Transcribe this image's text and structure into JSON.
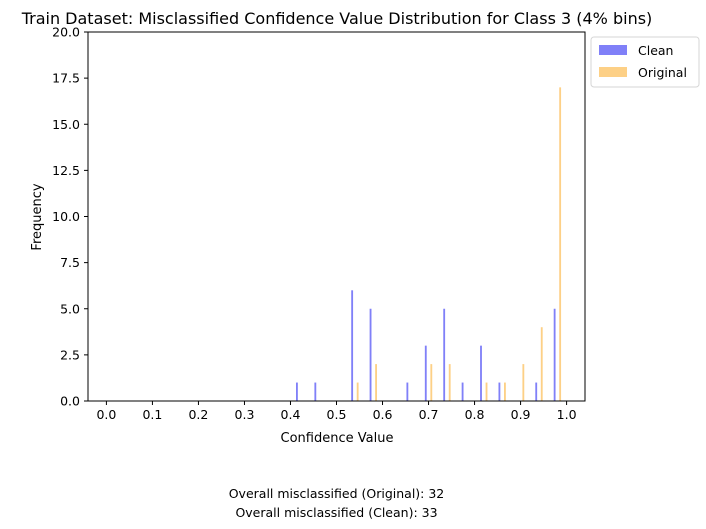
{
  "chart_data": {
    "type": "bar",
    "title": "Train Dataset: Misclassified Confidence Value Distribution for Class 3 (4% bins)",
    "xlabel": "Confidence Value",
    "ylabel": "Frequency",
    "xlim": [
      -0.04,
      1.04
    ],
    "ylim": [
      0,
      20
    ],
    "bin_width": 0.04,
    "xticks": [
      0.0,
      0.1,
      0.2,
      0.3,
      0.4,
      0.5,
      0.6,
      0.7,
      0.8,
      0.9,
      1.0
    ],
    "xtick_labels": [
      "0.0",
      "0.1",
      "0.2",
      "0.3",
      "0.4",
      "0.5",
      "0.6",
      "0.7",
      "0.8",
      "0.9",
      "1.0"
    ],
    "yticks": [
      0.0,
      2.5,
      5.0,
      7.5,
      10.0,
      12.5,
      15.0,
      17.5,
      20.0
    ],
    "ytick_labels": [
      "0.0",
      "2.5",
      "5.0",
      "7.5",
      "10.0",
      "12.5",
      "15.0",
      "17.5",
      "20.0"
    ],
    "bin_starts": [
      0.0,
      0.04,
      0.08,
      0.12,
      0.16,
      0.2,
      0.24,
      0.28,
      0.32,
      0.36,
      0.4,
      0.44,
      0.48,
      0.52,
      0.56,
      0.6,
      0.64,
      0.68,
      0.72,
      0.76,
      0.8,
      0.84,
      0.88,
      0.92,
      0.96
    ],
    "series": [
      {
        "name": "Clean",
        "color": "#8080f8",
        "values": [
          0,
          0,
          0,
          0,
          0,
          0,
          0,
          0,
          0,
          0,
          1,
          1,
          0,
          6,
          5,
          0,
          1,
          3,
          5,
          1,
          3,
          1,
          0,
          1,
          5
        ]
      },
      {
        "name": "Original",
        "color": "#fdd086",
        "values": [
          0,
          0,
          0,
          0,
          0,
          0,
          0,
          0,
          0,
          0,
          0,
          0,
          0,
          1,
          2,
          0,
          0,
          2,
          2,
          0,
          1,
          1,
          2,
          4,
          17
        ]
      }
    ],
    "legend_position": "outside-top-right",
    "grid": false
  },
  "footer": {
    "line1": "Overall misclassified (Original): 32",
    "line2": "Overall misclassified (Clean): 33"
  }
}
